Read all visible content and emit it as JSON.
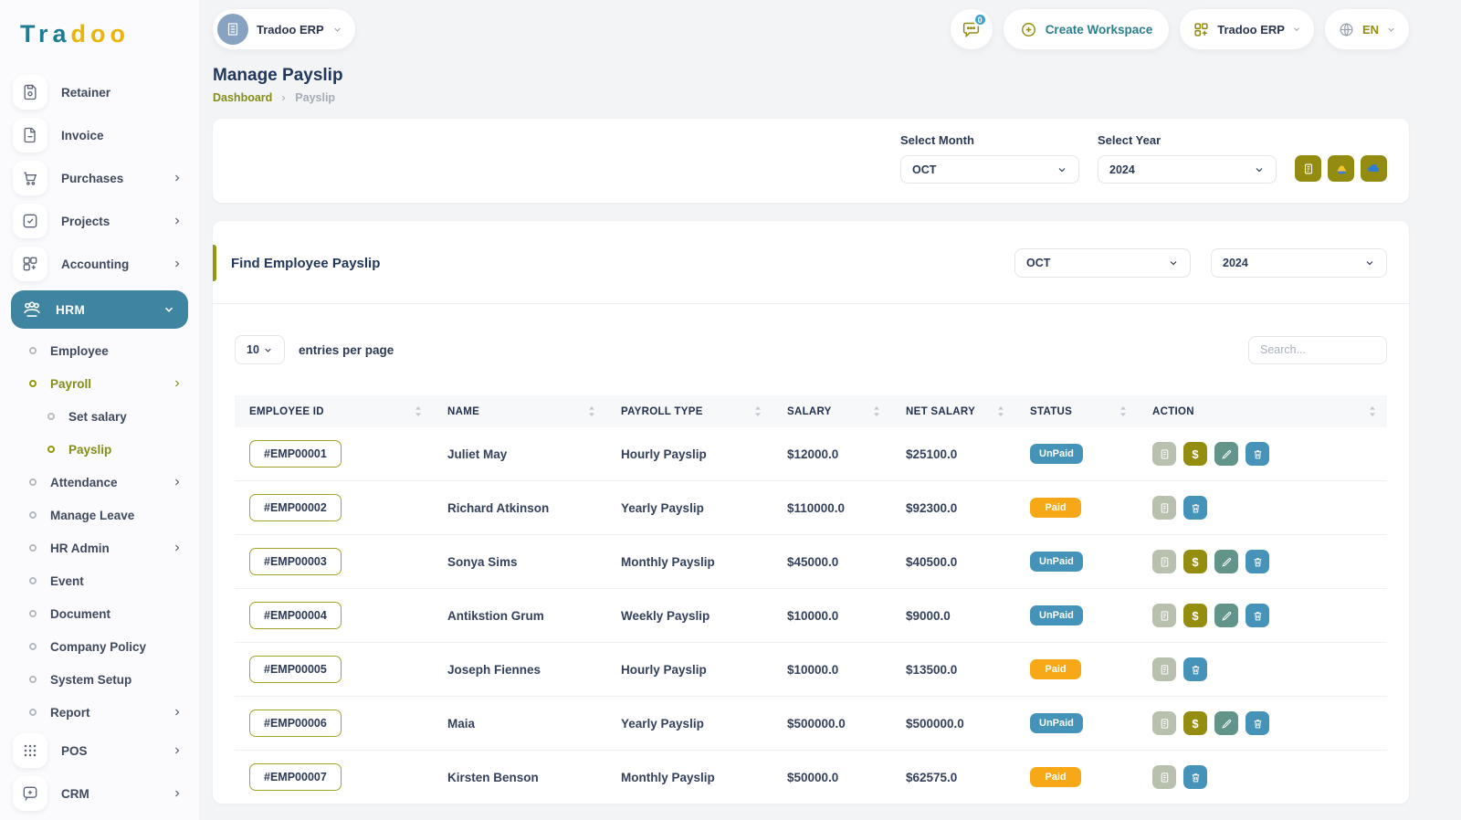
{
  "brand": {
    "logo_part1": "Tra",
    "logo_part2": "doo"
  },
  "workspace": {
    "name": "Tradoo ERP"
  },
  "topbar": {
    "messages_badge": "0",
    "create_workspace_label": "Create Workspace",
    "workspace_button_label": "Tradoo ERP",
    "language": "EN"
  },
  "page": {
    "title": "Manage Payslip",
    "breadcrumb_home": "Dashboard",
    "breadcrumb_current": "Payslip"
  },
  "filters": {
    "month_label": "Select Month",
    "month_value": "OCT",
    "year_label": "Select Year",
    "year_value": "2024",
    "export_buttons": [
      "export-payslip-icon",
      "google-drive-icon",
      "cloud-upload-icon"
    ]
  },
  "find_section": {
    "title": "Find Employee Payslip",
    "month_value": "OCT",
    "year_value": "2024"
  },
  "table": {
    "page_size": "10",
    "entries_label": "entries per page",
    "search_placeholder": "Search...",
    "columns": [
      "EMPLOYEE ID",
      "NAME",
      "PAYROLL TYPE",
      "SALARY",
      "NET SALARY",
      "STATUS",
      "ACTION"
    ],
    "rows": [
      {
        "id": "#EMP00001",
        "name": "Juliet May",
        "payroll_type": "Hourly Payslip",
        "salary": "$12000.0",
        "net_salary": "$25100.0",
        "status": "UnPaid",
        "actions": [
          "payslip",
          "pay",
          "edit",
          "delete"
        ]
      },
      {
        "id": "#EMP00002",
        "name": "Richard Atkinson",
        "payroll_type": "Yearly Payslip",
        "salary": "$110000.0",
        "net_salary": "$92300.0",
        "status": "Paid",
        "actions": [
          "payslip",
          "delete"
        ]
      },
      {
        "id": "#EMP00003",
        "name": "Sonya Sims",
        "payroll_type": "Monthly Payslip",
        "salary": "$45000.0",
        "net_salary": "$40500.0",
        "status": "UnPaid",
        "actions": [
          "payslip",
          "pay",
          "edit",
          "delete"
        ]
      },
      {
        "id": "#EMP00004",
        "name": "Antikstion Grum",
        "payroll_type": "Weekly Payslip",
        "salary": "$10000.0",
        "net_salary": "$9000.0",
        "status": "UnPaid",
        "actions": [
          "payslip",
          "pay",
          "edit",
          "delete"
        ]
      },
      {
        "id": "#EMP00005",
        "name": "Joseph Fiennes",
        "payroll_type": "Hourly Payslip",
        "salary": "$10000.0",
        "net_salary": "$13500.0",
        "status": "Paid",
        "actions": [
          "payslip",
          "delete"
        ]
      },
      {
        "id": "#EMP00006",
        "name": "Maia",
        "payroll_type": "Yearly Payslip",
        "salary": "$500000.0",
        "net_salary": "$500000.0",
        "status": "UnPaid",
        "actions": [
          "payslip",
          "pay",
          "edit",
          "delete"
        ]
      },
      {
        "id": "#EMP00007",
        "name": "Kirsten Benson",
        "payroll_type": "Monthly Payslip",
        "salary": "$50000.0",
        "net_salary": "$62575.0",
        "status": "Paid",
        "actions": [
          "payslip",
          "delete"
        ]
      }
    ]
  },
  "sidebar": {
    "items": [
      {
        "label": "Retainer",
        "icon": "retainer-icon",
        "level": 0
      },
      {
        "label": "Invoice",
        "icon": "invoice-icon",
        "level": 0
      },
      {
        "label": "Purchases",
        "icon": "purchases-icon",
        "level": 0,
        "chevron": "right"
      },
      {
        "label": "Projects",
        "icon": "projects-icon",
        "level": 0,
        "chevron": "right"
      },
      {
        "label": "Accounting",
        "icon": "accounting-icon",
        "level": 0,
        "chevron": "right"
      },
      {
        "label": "HRM",
        "icon": "hrm-icon",
        "level": 0,
        "active": true,
        "chevron": "down"
      },
      {
        "label": "Employee",
        "level": 1
      },
      {
        "label": "Payroll",
        "level": 1,
        "active": true,
        "chevron": "right"
      },
      {
        "label": "Set salary",
        "level": 2
      },
      {
        "label": "Payslip",
        "level": 2,
        "active": true
      },
      {
        "label": "Attendance",
        "level": 1,
        "chevron": "right"
      },
      {
        "label": "Manage Leave",
        "level": 1
      },
      {
        "label": "HR Admin",
        "level": 1,
        "chevron": "right"
      },
      {
        "label": "Event",
        "level": 1
      },
      {
        "label": "Document",
        "level": 1
      },
      {
        "label": "Company Policy",
        "level": 1
      },
      {
        "label": "System Setup",
        "level": 1
      },
      {
        "label": "Report",
        "level": 1,
        "chevron": "right"
      },
      {
        "label": "POS",
        "icon": "pos-icon",
        "level": 0,
        "chevron": "right"
      },
      {
        "label": "CRM",
        "icon": "crm-icon",
        "level": 0,
        "chevron": "right"
      }
    ]
  },
  "colors": {
    "brand_teal": "#1d7d92",
    "brand_yellow": "#e9b50b",
    "olive_accent": "#948c10",
    "active_nav": "#3f84a0",
    "status_paid": "#f7a816",
    "status_unpaid": "#4593b8",
    "action_payslip": "#b7c1ad",
    "action_pay": "#958d0e",
    "action_edit": "#629489",
    "action_delete": "#4593b8"
  }
}
